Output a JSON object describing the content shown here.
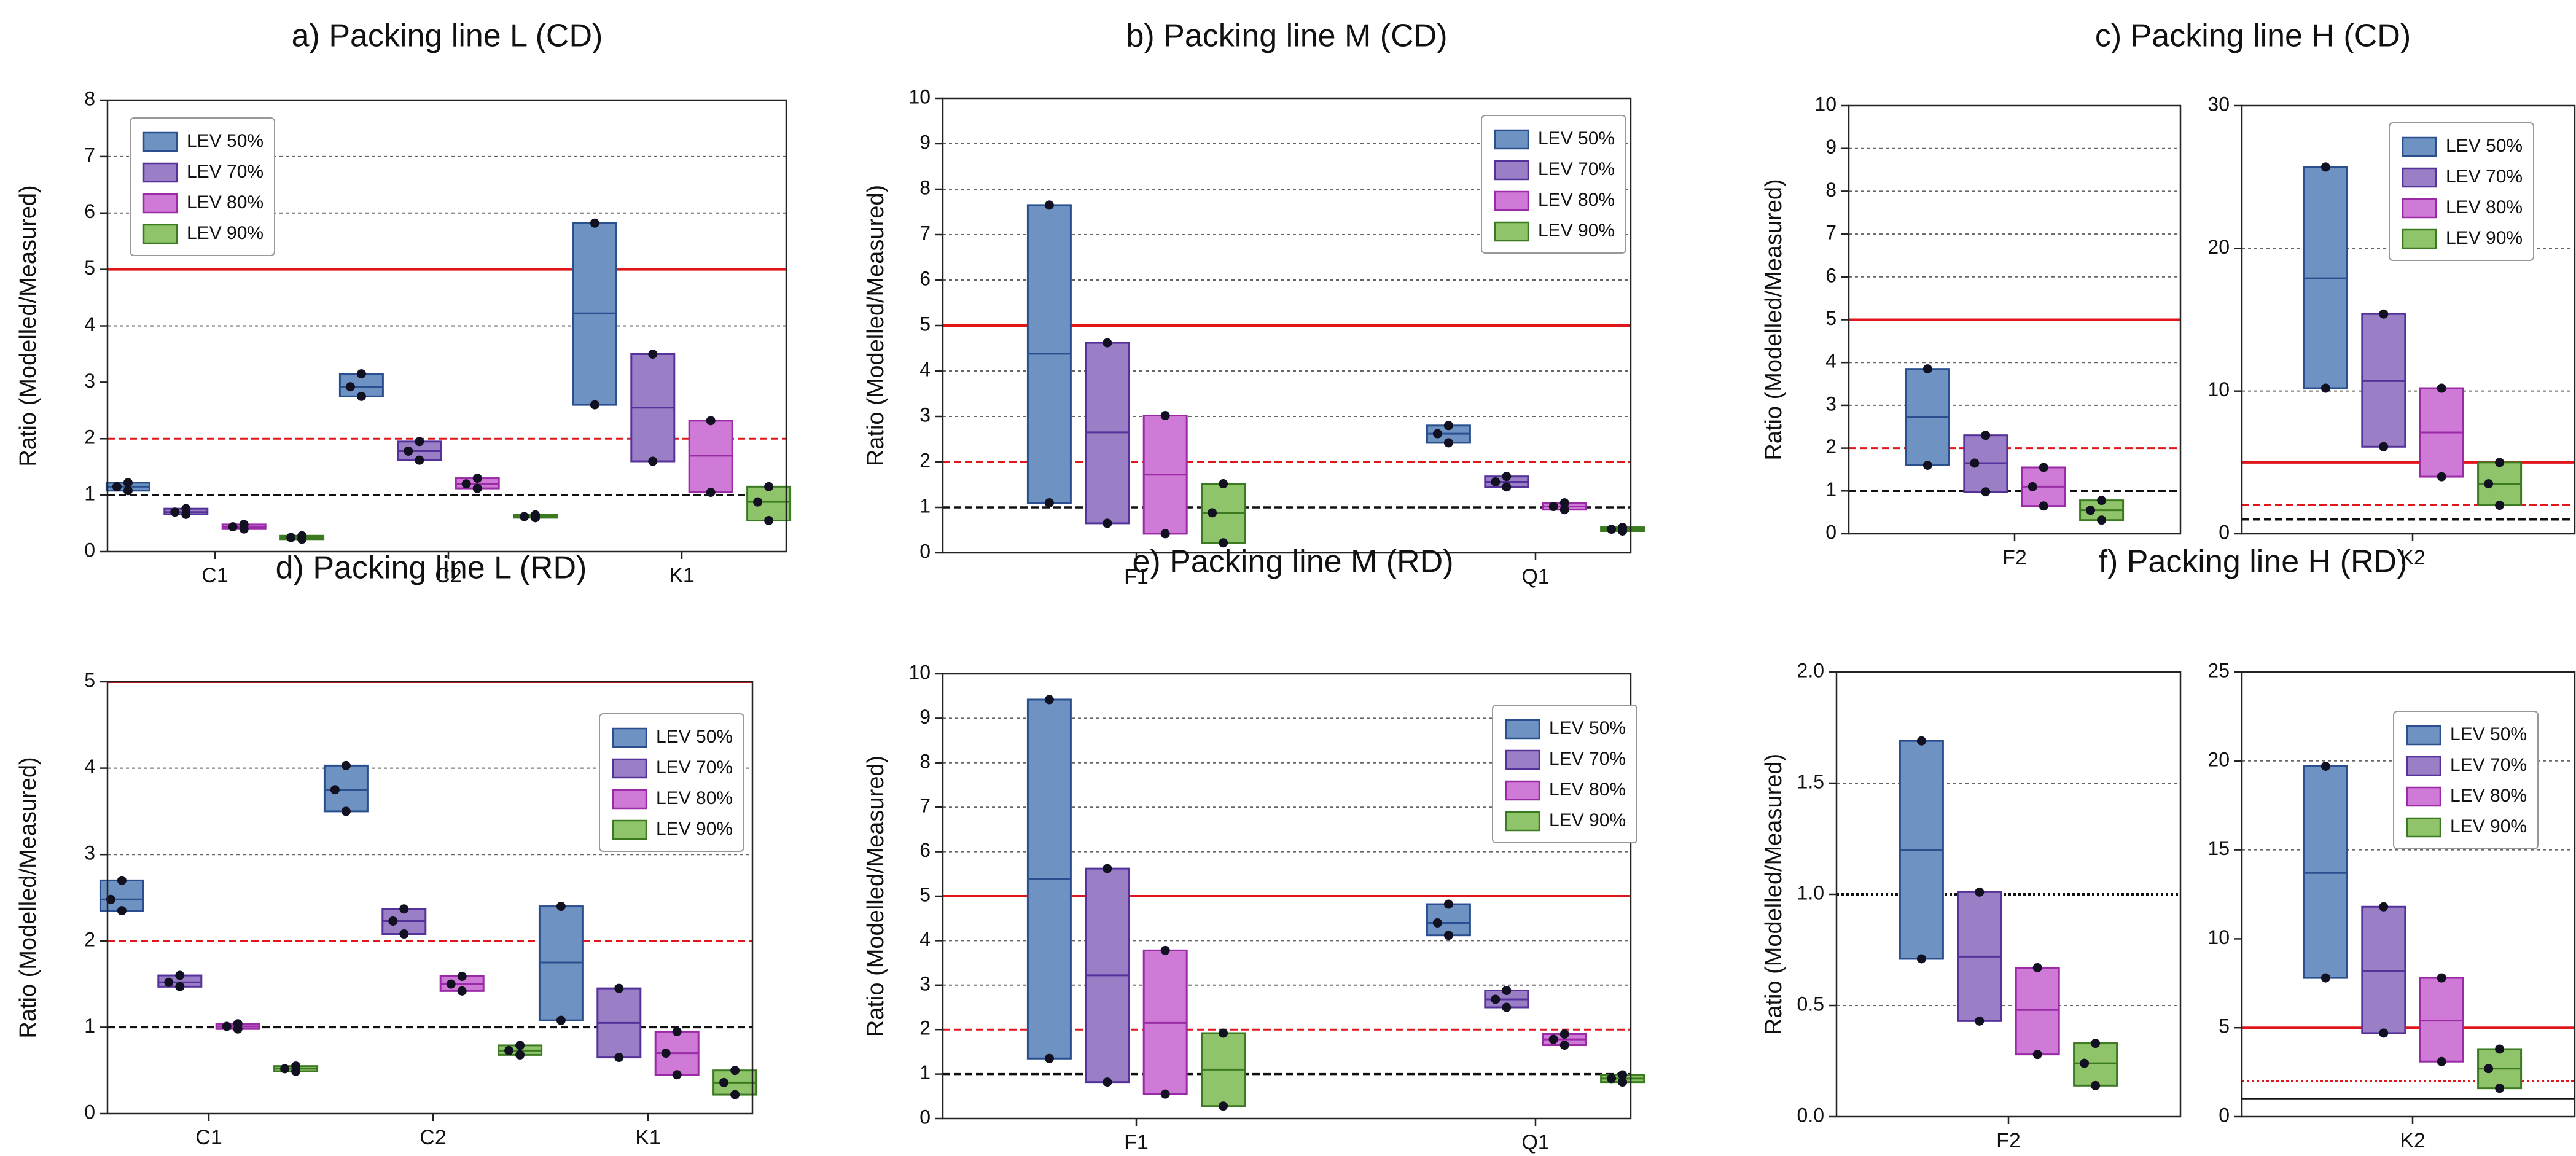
{
  "colors": {
    "LEV 50%": {
      "fill": "#6e92c2",
      "edge": "#2a4f8f"
    },
    "LEV 70%": {
      "fill": "#9a7fc6",
      "edge": "#55329a"
    },
    "LEV 80%": {
      "fill": "#cf7ad6",
      "edge": "#9a2aa6"
    },
    "LEV 90%": {
      "fill": "#8fc46a",
      "edge": "#3c7a22"
    },
    "red_line": "#e0161b",
    "black_line": "#111111",
    "grid": "#666666",
    "point": "#111122"
  },
  "chart_data": [
    {
      "panel": "a",
      "type": "box",
      "title": "a) Packing line L (CD)",
      "ylabel": "Ratio (Modelled/Measured)",
      "ylim": [
        0,
        8
      ],
      "yticks": [
        0,
        1,
        2,
        3,
        4,
        5,
        6,
        7,
        8
      ],
      "ytick_labels": [
        "0",
        "1",
        "2",
        "3",
        "4",
        "5",
        "6",
        "7",
        "8"
      ],
      "categories": [
        "C1",
        "C2",
        "K1"
      ],
      "series_names": [
        "LEV 50%",
        "LEV 70%",
        "LEV 80%",
        "LEV 90%"
      ],
      "legend_labels": [
        "LEV 50%",
        "LEV 70%",
        "LEV 80%",
        "LEV 90%"
      ],
      "legend_position": "top-left",
      "gridlines": [
        4,
        6,
        7
      ],
      "ref_lines": [
        {
          "y": 5,
          "style": "solid-red"
        },
        {
          "y": 2,
          "style": "dashed-red"
        },
        {
          "y": 1,
          "style": "dashed-black"
        }
      ],
      "boxes": [
        [
          [
            1.08,
            1.15,
            1.22
          ],
          [
            0.66,
            0.7,
            0.76
          ],
          [
            0.4,
            0.44,
            0.48
          ],
          [
            0.22,
            0.25,
            0.28
          ]
        ],
        [
          [
            2.75,
            2.92,
            3.15
          ],
          [
            1.62,
            1.78,
            1.95
          ],
          [
            1.12,
            1.2,
            1.3
          ],
          [
            0.6,
            0.62,
            0.65
          ]
        ],
        [
          [
            2.6,
            4.22,
            5.82
          ],
          [
            1.6,
            2.55,
            3.5
          ],
          [
            1.05,
            1.7,
            2.32
          ],
          [
            0.55,
            0.88,
            1.15
          ]
        ]
      ]
    },
    {
      "panel": "b",
      "type": "box",
      "title": "b) Packing line M (CD)",
      "ylabel": "Ratio (Modelled/Measured)",
      "ylim": [
        0,
        10
      ],
      "yticks": [
        0,
        1,
        2,
        3,
        4,
        5,
        6,
        7,
        8,
        9,
        10
      ],
      "ytick_labels": [
        "0",
        "1",
        "2",
        "3",
        "4",
        "5",
        "6",
        "7",
        "8",
        "9",
        "10"
      ],
      "categories": [
        "F1",
        "Q1"
      ],
      "series_names": [
        "LEV 50%",
        "LEV 70%",
        "LEV 80%",
        "LEV 90%"
      ],
      "legend_labels": [
        "LEV 50%",
        "LEV 70%",
        "LEV 80%",
        "LEV 90%"
      ],
      "legend_position": "top-right",
      "gridlines": [
        3,
        4,
        6,
        7,
        8,
        9
      ],
      "ref_lines": [
        {
          "y": 5,
          "style": "solid-red"
        },
        {
          "y": 2,
          "style": "dashed-red"
        },
        {
          "y": 1,
          "style": "dashed-black"
        }
      ],
      "boxes": [
        [
          [
            1.1,
            4.38,
            7.65
          ],
          [
            0.65,
            2.65,
            4.62
          ],
          [
            0.42,
            1.72,
            3.02
          ],
          [
            0.22,
            0.88,
            1.52
          ]
        ],
        [
          [
            2.42,
            2.62,
            2.8
          ],
          [
            1.45,
            1.56,
            1.68
          ],
          [
            0.95,
            1.02,
            1.1
          ],
          [
            0.48,
            0.52,
            0.56
          ]
        ]
      ]
    },
    {
      "panel": "c1",
      "type": "box",
      "title": "c) Packing line H (CD)",
      "ylabel": "Ratio (Modelled/Measured)",
      "ylim": [
        0,
        10
      ],
      "yticks": [
        0,
        1,
        2,
        3,
        4,
        5,
        6,
        7,
        8,
        9,
        10
      ],
      "ytick_labels": [
        "0",
        "1",
        "2",
        "3",
        "4",
        "5",
        "6",
        "7",
        "8",
        "9",
        "10"
      ],
      "categories": [
        "F2"
      ],
      "series_names": [
        "LEV 50%",
        "LEV 70%",
        "LEV 80%",
        "LEV 90%"
      ],
      "gridlines": [
        3,
        4,
        6,
        7,
        8,
        9
      ],
      "ref_lines": [
        {
          "y": 5,
          "style": "solid-red"
        },
        {
          "y": 2,
          "style": "dashed-red"
        },
        {
          "y": 1,
          "style": "dashed-black"
        }
      ],
      "boxes": [
        [
          [
            1.6,
            2.72,
            3.85
          ],
          [
            0.98,
            1.65,
            2.3
          ],
          [
            0.65,
            1.1,
            1.55
          ],
          [
            0.32,
            0.55,
            0.78
          ]
        ]
      ]
    },
    {
      "panel": "c2",
      "type": "box",
      "ylim": [
        0,
        30
      ],
      "yticks": [
        0,
        10,
        20,
        30
      ],
      "ytick_labels": [
        "0",
        "10",
        "20",
        "30"
      ],
      "categories": [
        "K2"
      ],
      "series_names": [
        "LEV 50%",
        "LEV 70%",
        "LEV 80%",
        "LEV 90%"
      ],
      "legend_labels": [
        "LEV 50%",
        "LEV 70%",
        "LEV 80%",
        "LEV 90%"
      ],
      "legend_position": "top-right",
      "gridlines": [
        10,
        20
      ],
      "ref_lines": [
        {
          "y": 5,
          "style": "solid-red"
        },
        {
          "y": 2,
          "style": "dashed-red"
        },
        {
          "y": 1,
          "style": "dashed-black"
        }
      ],
      "boxes": [
        [
          [
            10.2,
            17.9,
            25.7
          ],
          [
            6.1,
            10.7,
            15.4
          ],
          [
            4.0,
            7.1,
            10.2
          ],
          [
            2.0,
            3.5,
            5.0
          ]
        ]
      ]
    },
    {
      "panel": "d",
      "type": "box",
      "title": "d) Packing line L (RD)",
      "ylabel": "Ratio (Modelled/Measured)",
      "ylim": [
        0,
        5
      ],
      "yticks": [
        0,
        1,
        2,
        3,
        4,
        5
      ],
      "ytick_labels": [
        "0",
        "1",
        "2",
        "3",
        "4",
        "5"
      ],
      "categories": [
        "C1",
        "C2",
        "K1"
      ],
      "series_names": [
        "LEV 50%",
        "LEV 70%",
        "LEV 80%",
        "LEV 90%"
      ],
      "legend_labels": [
        "LEV 50%",
        "LEV 70%",
        "LEV 80%",
        "LEV 90%"
      ],
      "legend_position": "top-right",
      "gridlines": [
        3,
        4
      ],
      "ref_lines": [
        {
          "y": 5,
          "style": "solid-red"
        },
        {
          "y": 2,
          "style": "dashed-red"
        },
        {
          "y": 1,
          "style": "dashed-black"
        }
      ],
      "boxes": [
        [
          [
            2.35,
            2.48,
            2.7
          ],
          [
            1.47,
            1.52,
            1.6
          ],
          [
            0.98,
            1.01,
            1.04
          ],
          [
            0.49,
            0.52,
            0.55
          ]
        ],
        [
          [
            3.5,
            3.75,
            4.03
          ],
          [
            2.08,
            2.23,
            2.37
          ],
          [
            1.42,
            1.5,
            1.59
          ],
          [
            0.68,
            0.73,
            0.79
          ]
        ],
        [
          [
            1.08,
            1.75,
            2.4
          ],
          [
            0.65,
            1.05,
            1.45
          ],
          [
            0.45,
            0.7,
            0.95
          ],
          [
            0.22,
            0.36,
            0.5
          ]
        ]
      ]
    },
    {
      "panel": "e",
      "type": "box",
      "title": "e) Packing line M (RD)",
      "ylabel": "Ratio (Modelled/Measured)",
      "ylim": [
        0,
        10
      ],
      "yticks": [
        0,
        1,
        2,
        3,
        4,
        5,
        6,
        7,
        8,
        9,
        10
      ],
      "ytick_labels": [
        "0",
        "1",
        "2",
        "3",
        "4",
        "5",
        "6",
        "7",
        "8",
        "9",
        "10"
      ],
      "categories": [
        "F1",
        "Q1"
      ],
      "series_names": [
        "LEV 50%",
        "LEV 70%",
        "LEV 80%",
        "LEV 90%"
      ],
      "legend_labels": [
        "LEV 50%",
        "LEV 70%",
        "LEV 80%",
        "LEV 90%"
      ],
      "legend_position": "top-right",
      "gridlines": [
        3,
        4,
        6,
        7,
        8,
        9
      ],
      "ref_lines": [
        {
          "y": 5,
          "style": "solid-red"
        },
        {
          "y": 2,
          "style": "dashed-red"
        },
        {
          "y": 1,
          "style": "dashed-black"
        }
      ],
      "boxes": [
        [
          [
            1.35,
            5.38,
            9.42
          ],
          [
            0.82,
            3.22,
            5.62
          ],
          [
            0.55,
            2.15,
            3.78
          ],
          [
            0.28,
            1.1,
            1.92
          ]
        ],
        [
          [
            4.12,
            4.4,
            4.82
          ],
          [
            2.5,
            2.68,
            2.88
          ],
          [
            1.65,
            1.78,
            1.9
          ],
          [
            0.82,
            0.9,
            0.98
          ]
        ]
      ]
    },
    {
      "panel": "f1",
      "type": "box",
      "title": "f) Packing line H (RD)",
      "ylabel": "Ratio (Modelled/Measured)",
      "ylim": [
        0,
        2
      ],
      "yticks": [
        0,
        0.5,
        1,
        1.5,
        2
      ],
      "ytick_labels": [
        "0.0",
        "0.5",
        "1.0",
        "1.5",
        "2.0"
      ],
      "categories": [
        "F2"
      ],
      "series_names": [
        "LEV 50%",
        "LEV 70%",
        "LEV 80%",
        "LEV 90%"
      ],
      "gridlines": [
        0.5,
        1.5
      ],
      "ref_lines": [
        {
          "y": 2,
          "style": "solid-red"
        },
        {
          "y": 1,
          "style": "dotted-black"
        }
      ],
      "boxes": [
        [
          [
            0.71,
            1.2,
            1.69
          ],
          [
            0.43,
            0.72,
            1.01
          ],
          [
            0.28,
            0.48,
            0.67
          ],
          [
            0.14,
            0.24,
            0.33
          ]
        ]
      ]
    },
    {
      "panel": "f2",
      "type": "box",
      "ylim": [
        0,
        25
      ],
      "yticks": [
        0,
        5,
        10,
        15,
        20,
        25
      ],
      "ytick_labels": [
        "0",
        "5",
        "10",
        "15",
        "20",
        "25"
      ],
      "categories": [
        "K2"
      ],
      "series_names": [
        "LEV 50%",
        "LEV 70%",
        "LEV 80%",
        "LEV 90%"
      ],
      "legend_labels": [
        "LEV 50%",
        "LEV 70%",
        "LEV 80%",
        "LEV 90%"
      ],
      "legend_position": "top-right",
      "gridlines": [
        15,
        20
      ],
      "ref_lines": [
        {
          "y": 5,
          "style": "solid-red"
        },
        {
          "y": 2,
          "style": "dotted-red"
        },
        {
          "y": 1,
          "style": "solid-black"
        }
      ],
      "boxes": [
        [
          [
            7.8,
            13.7,
            19.7
          ],
          [
            4.7,
            8.2,
            11.8
          ],
          [
            3.1,
            5.4,
            7.8
          ],
          [
            1.6,
            2.7,
            3.8
          ]
        ]
      ]
    }
  ]
}
